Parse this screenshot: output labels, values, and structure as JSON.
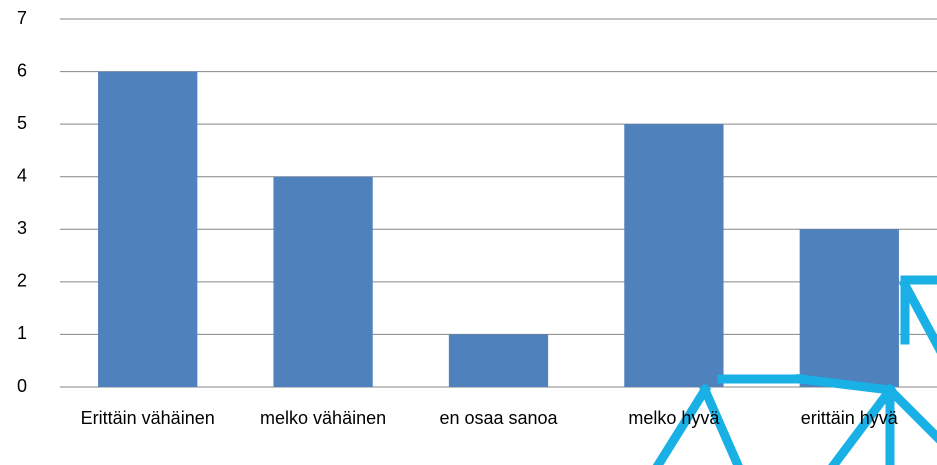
{
  "chart_data": {
    "type": "bar",
    "categories": [
      "Erittäin vähäinen",
      "melko vähäinen",
      "en osaa sanoa",
      "melko hyvä",
      "erittäin hyvä"
    ],
    "values": [
      6,
      4,
      1,
      5,
      3
    ],
    "color": "#4f81bd",
    "ylim": [
      0,
      7
    ],
    "yticks": [
      0,
      1,
      2,
      3,
      4,
      5,
      6,
      7
    ],
    "grid": true
  }
}
